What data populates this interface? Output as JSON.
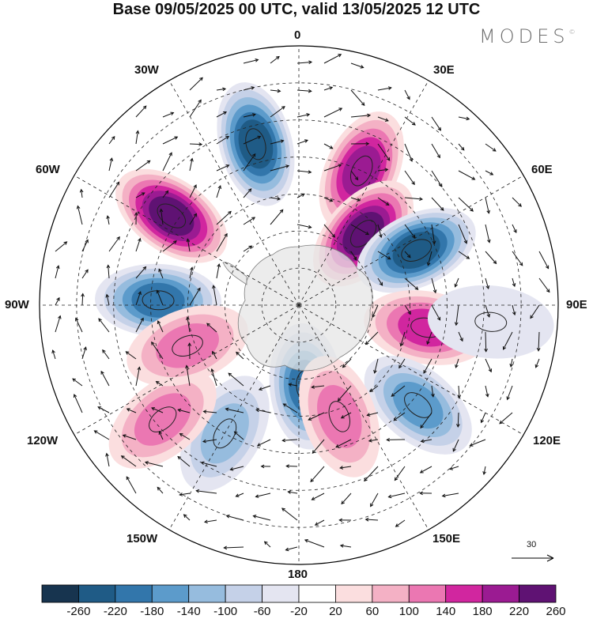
{
  "title": "Base 09/05/2025 00 UTC, valid 13/05/2025 12 UTC",
  "brand": "MODES",
  "brand_mark": "©",
  "lon_labels": {
    "top": "0",
    "bottom": "180",
    "left": "90W",
    "right": "90E",
    "nw1": "30W",
    "nw2": "60W",
    "ne1": "30E",
    "ne2": "60E",
    "sw1": "120W",
    "sw2": "150W",
    "se1": "120E",
    "se2": "150E"
  },
  "vector_scale": "30",
  "colorbar": {
    "ticks": [
      "-260",
      "-220",
      "-180",
      "-140",
      "-100",
      "-60",
      "-20",
      "20",
      "60",
      "100",
      "140",
      "180",
      "220",
      "260"
    ],
    "colors": [
      "#17344f",
      "#1f5b86",
      "#3276ab",
      "#5c9bcb",
      "#96bcde",
      "#c5d1e8",
      "#e4e5f1",
      "#ffffff",
      "#fbdedf",
      "#f4b1c5",
      "#eb77b2",
      "#d1269f",
      "#9b1b92",
      "#5f1273"
    ]
  },
  "anomalies": [
    {
      "lon": -15,
      "lat": -45,
      "value": -240
    },
    {
      "lon": -55,
      "lat": -48,
      "value": 230
    },
    {
      "lon": -88,
      "lat": -52,
      "value": -200
    },
    {
      "lon": 25,
      "lat": -50,
      "value": 180
    },
    {
      "lon": 42,
      "lat": -64,
      "value": 240
    },
    {
      "lon": 65,
      "lat": -55,
      "value": -230
    },
    {
      "lon": 100,
      "lat": -55,
      "value": 160
    },
    {
      "lon": 130,
      "lat": -48,
      "value": -170
    },
    {
      "lon": 175,
      "lat": -68,
      "value": -180
    },
    {
      "lon": 160,
      "lat": -58,
      "value": 110
    },
    {
      "lon": -150,
      "lat": -50,
      "value": -130
    },
    {
      "lon": -130,
      "lat": -42,
      "value": 110
    },
    {
      "lon": -110,
      "lat": -58,
      "value": 130
    },
    {
      "lon": 95,
      "lat": -38,
      "value": -40
    }
  ]
}
